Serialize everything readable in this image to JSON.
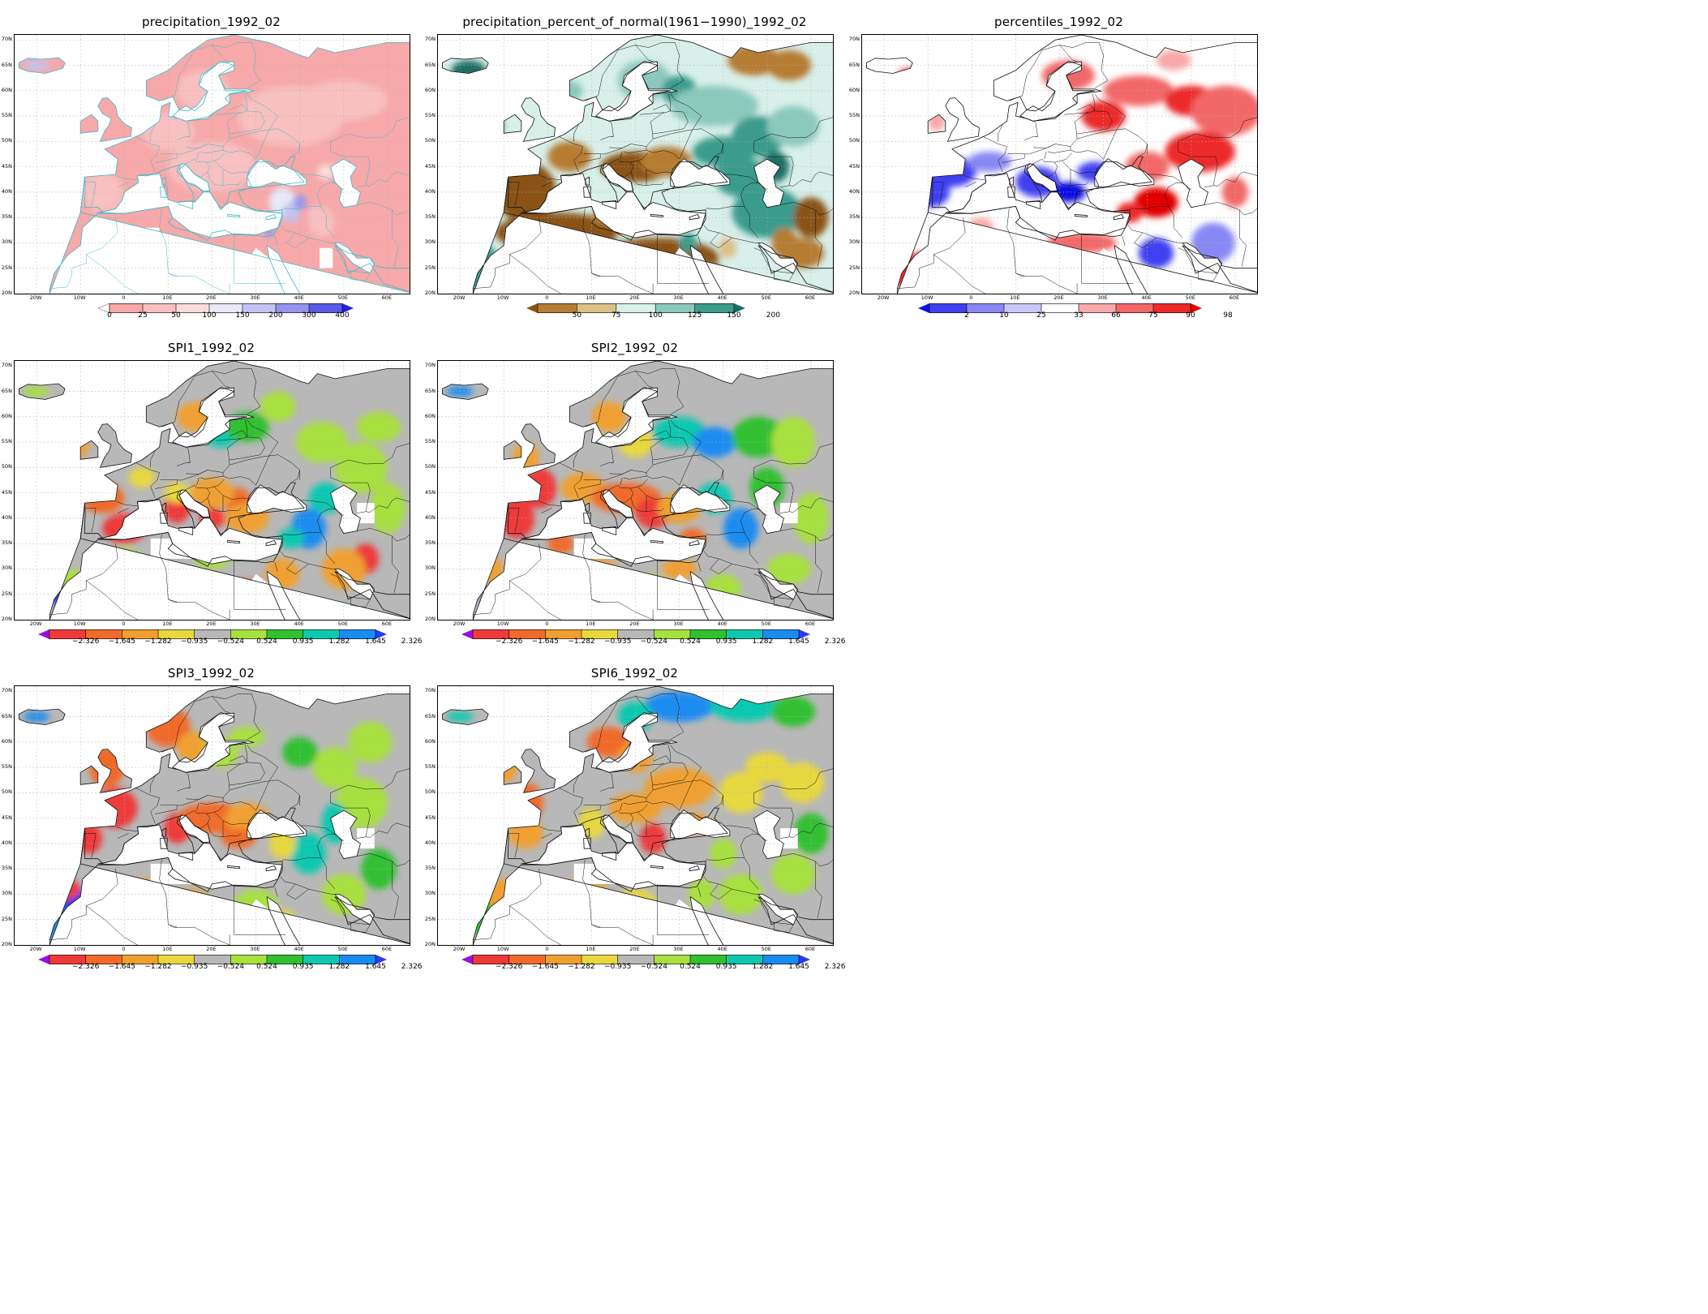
{
  "lat_labels": [
    "70N",
    "65N",
    "60N",
    "55N",
    "50N",
    "45N",
    "40N",
    "35N",
    "30N",
    "25N",
    "20N"
  ],
  "lon_labels": [
    "20W",
    "10W",
    "0",
    "10E",
    "20E",
    "30E",
    "40E",
    "50E",
    "60E"
  ],
  "panels": [
    {
      "id": "precip",
      "title": "precipitation_1992_02",
      "kind": "precip",
      "colorbar": {
        "ticks": [
          "0",
          "25",
          "50",
          "100",
          "150",
          "200",
          "300",
          "400"
        ],
        "colors": [
          "#ffffff",
          "#f7a8a8",
          "#f8c0c0",
          "#fbdcdc",
          "#e8e8f8",
          "#c4c4f4",
          "#9494ee",
          "#5a5ae6",
          "#2222d8"
        ]
      }
    },
    {
      "id": "pct",
      "title": "precipitation_percent_of_normal(1961-1990)_1992_02",
      "kind": "pct",
      "colorbar": {
        "ticks": [
          "50",
          "75",
          "100",
          "125",
          "150",
          "200"
        ],
        "colors": [
          "#8a5314",
          "#b57c33",
          "#dcc088",
          "#d8efea",
          "#8cc9bd",
          "#3b9c8c",
          "#1c6e63"
        ]
      }
    },
    {
      "id": "perc",
      "title": "percentiles_1992_02",
      "kind": "perc",
      "colorbar": {
        "ticks": [
          "2",
          "10",
          "25",
          "33",
          "66",
          "75",
          "90",
          "98"
        ],
        "colors": [
          "#1010e0",
          "#4040f0",
          "#8888f4",
          "#c8c8f8",
          "#ffffff",
          "#f8a8a8",
          "#f26868",
          "#ec2a2a",
          "#e00000"
        ]
      }
    },
    {
      "id": "spi1",
      "title": "SPI1_1992_02",
      "kind": "spi1",
      "colorbar": {
        "ticks": [
          "-2.326",
          "-1.645",
          "-1.282",
          "-0.935",
          "-0.524",
          "0.524",
          "0.935",
          "1.282",
          "1.645",
          "2.326"
        ],
        "colors": [
          "#9a10e0",
          "#ee3a3a",
          "#f06a2a",
          "#f0a030",
          "#e8d840",
          "#b8b8b8",
          "#a8e040",
          "#30c030",
          "#10c8b0",
          "#1a8cf0",
          "#2a3aee"
        ]
      }
    },
    {
      "id": "spi2",
      "title": "SPI2_1992_02",
      "kind": "spi2",
      "colorbar": {
        "ticks": [
          "-2.326",
          "-1.645",
          "-1.282",
          "-0.935",
          "-0.524",
          "0.524",
          "0.935",
          "1.282",
          "1.645",
          "2.326"
        ],
        "colors": [
          "#9a10e0",
          "#ee3a3a",
          "#f06a2a",
          "#f0a030",
          "#e8d840",
          "#b8b8b8",
          "#a8e040",
          "#30c030",
          "#10c8b0",
          "#1a8cf0",
          "#2a3aee"
        ]
      }
    },
    {
      "id": "spi3",
      "title": "SPI3_1992_02",
      "kind": "spi3",
      "colorbar": {
        "ticks": [
          "-2.326",
          "-1.645",
          "-1.282",
          "-0.935",
          "-0.524",
          "0.524",
          "0.935",
          "1.282",
          "1.645",
          "2.326"
        ],
        "colors": [
          "#9a10e0",
          "#ee3a3a",
          "#f06a2a",
          "#f0a030",
          "#e8d840",
          "#b8b8b8",
          "#a8e040",
          "#30c030",
          "#10c8b0",
          "#1a8cf0",
          "#2a3aee"
        ]
      }
    },
    {
      "id": "spi6",
      "title": "SPI6_1992_02",
      "kind": "spi6",
      "colorbar": {
        "ticks": [
          "-2.326",
          "-1.645",
          "-1.282",
          "-0.935",
          "-0.524",
          "0.524",
          "0.935",
          "1.282",
          "1.645",
          "2.326"
        ],
        "colors": [
          "#9a10e0",
          "#ee3a3a",
          "#f06a2a",
          "#f0a030",
          "#e8d840",
          "#b8b8b8",
          "#a8e040",
          "#30c030",
          "#10c8b0",
          "#1a8cf0",
          "#2a3aee"
        ]
      }
    }
  ]
}
